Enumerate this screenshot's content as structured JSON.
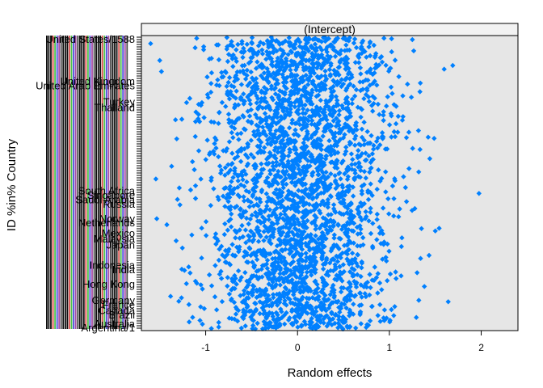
{
  "chart_data": {
    "type": "scatter",
    "panel_title": "(Intercept)",
    "xlabel": "Random effects",
    "ylabel": "ID %in% Country",
    "xlim": [
      -1.7,
      2.4
    ],
    "x_ticks": [
      -1,
      0,
      1,
      2
    ],
    "x_tick_labels": [
      "-1",
      "0",
      "1",
      "2"
    ],
    "n_levels": 3000,
    "point_color": "#0080ff",
    "panel_bg": "#e6e6e6",
    "strip_bg": "#f2f2f2",
    "label_colors": [
      "#000000",
      "#000000",
      "#000000",
      "#cc0000",
      "#00aa00",
      "#0000cc",
      "#7f007f",
      "#000000"
    ],
    "y_tick_labels": [
      {
        "text": "United States/1588",
        "pos": 0.995
      },
      {
        "text": "United Kingdom",
        "pos": 0.85
      },
      {
        "text": "United Arab Emirates",
        "pos": 0.835
      },
      {
        "text": "Turkey",
        "pos": 0.78
      },
      {
        "text": "Thailand",
        "pos": 0.76
      },
      {
        "text": "South Africa",
        "pos": 0.475
      },
      {
        "text": "Singapore",
        "pos": 0.46
      },
      {
        "text": "Saudi Arabia",
        "pos": 0.445
      },
      {
        "text": "Russia",
        "pos": 0.43
      },
      {
        "text": "Norway",
        "pos": 0.38
      },
      {
        "text": "Netherlands",
        "pos": 0.365
      },
      {
        "text": "Mexico",
        "pos": 0.33
      },
      {
        "text": "Malaysia",
        "pos": 0.31
      },
      {
        "text": "Japan",
        "pos": 0.29
      },
      {
        "text": "Indonesia",
        "pos": 0.22
      },
      {
        "text": "India",
        "pos": 0.205
      },
      {
        "text": "Hong Kong",
        "pos": 0.155
      },
      {
        "text": "Germany",
        "pos": 0.1
      },
      {
        "text": "France",
        "pos": 0.085
      },
      {
        "text": "Canada",
        "pos": 0.065
      },
      {
        "text": "Brazil",
        "pos": 0.05
      },
      {
        "text": "Australia",
        "pos": 0.02
      },
      {
        "text": "Argentina/1",
        "pos": 0.005
      }
    ]
  }
}
